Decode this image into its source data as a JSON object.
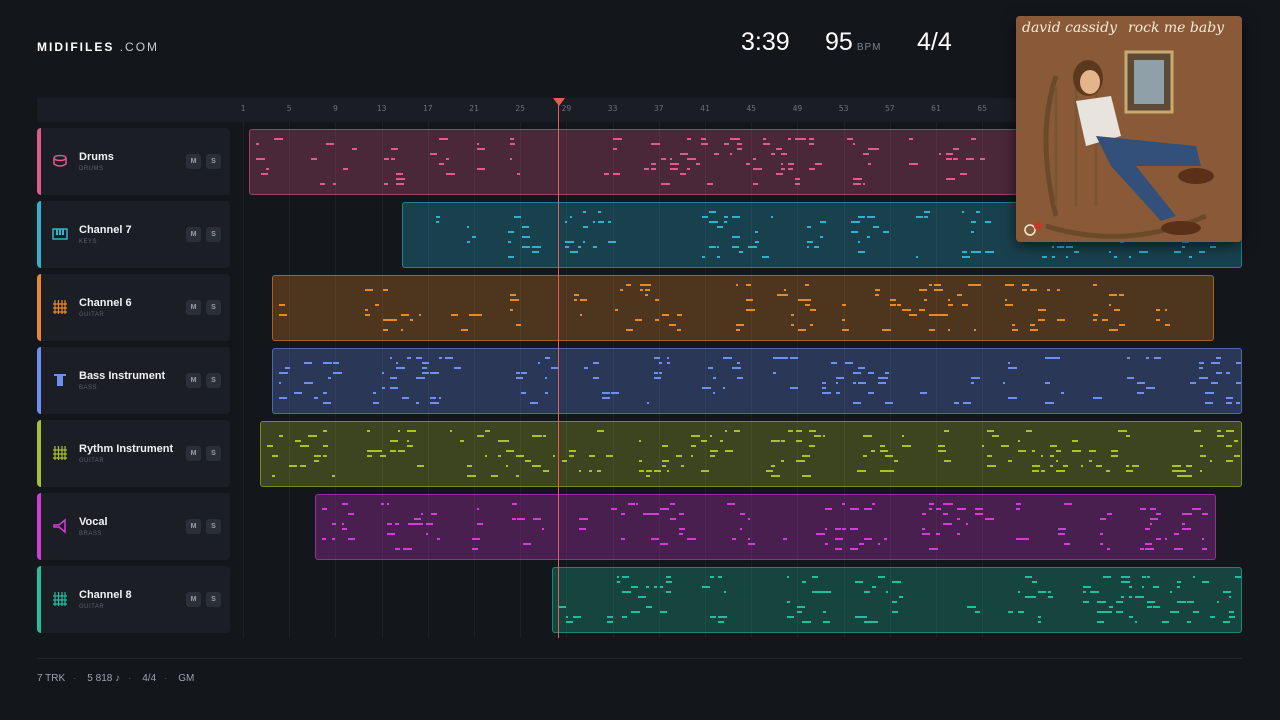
{
  "brand": {
    "name": "MIDIFILES",
    "suffix": ".COM"
  },
  "header": {
    "duration": "3:39",
    "bpm": "95",
    "bpm_unit": "BPM",
    "time_signature": "4/4"
  },
  "ruler": {
    "ticks": [
      "1",
      "5",
      "9",
      "13",
      "17",
      "21",
      "25",
      "29",
      "33",
      "37",
      "41",
      "45",
      "49",
      "53",
      "57",
      "61",
      "65"
    ]
  },
  "tracks": [
    {
      "name": "Drums",
      "type": "DRUMS",
      "icon": "drum-icon",
      "color": "#e05a8a",
      "mute": "M",
      "solo": "S"
    },
    {
      "name": "Channel 7",
      "type": "KEYS",
      "icon": "piano-icon",
      "color": "#2bb3d0",
      "mute": "M",
      "solo": "S"
    },
    {
      "name": "Channel 6",
      "type": "GUITAR",
      "icon": "guitar-grid-icon",
      "color": "#e88a26",
      "mute": "M",
      "solo": "S"
    },
    {
      "name": "Bass Instrument",
      "type": "BASS",
      "icon": "bass-icon",
      "color": "#6d8ff0",
      "mute": "M",
      "solo": "S"
    },
    {
      "name": "Rythm Instrument",
      "type": "GUITAR",
      "icon": "guitar-grid-icon",
      "color": "#a8c22a",
      "mute": "M",
      "solo": "S"
    },
    {
      "name": "Vocal",
      "type": "BRASS",
      "icon": "brass-icon",
      "color": "#d43bd8",
      "mute": "M",
      "solo": "S"
    },
    {
      "name": "Channel 8",
      "type": "GUITAR",
      "icon": "guitar-grid-icon",
      "color": "#1fbf9f",
      "mute": "M",
      "solo": "S"
    }
  ],
  "album": {
    "artist": "david cassidy",
    "title": "rock me baby",
    "label": "bell"
  },
  "footer": {
    "tracks": "7 TRK",
    "notes": "5 818 ♪",
    "time_signature": "4/4",
    "standard": "GM"
  }
}
